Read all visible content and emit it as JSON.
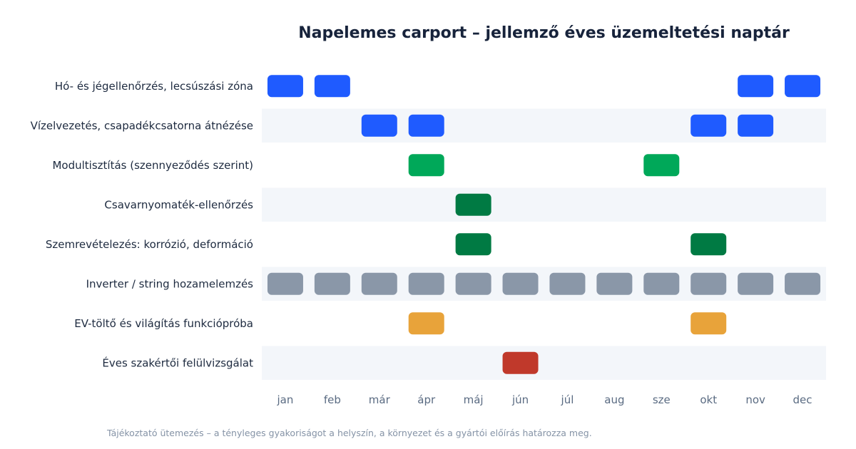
{
  "chart_data": {
    "type": "heatmap",
    "title": "Napelemes carport – jellemző éves üzemeltetési naptár",
    "months": [
      "jan",
      "feb",
      "már",
      "ápr",
      "máj",
      "jún",
      "júl",
      "aug",
      "sze",
      "okt",
      "nov",
      "dec"
    ],
    "rows": [
      {
        "label": "Hó- és jégellenőrzés, lecsúszási zóna",
        "color": "#1f5bff",
        "months": [
          1,
          2,
          11,
          12
        ]
      },
      {
        "label": "Vízelvezetés, csapadékcsatorna átnézése",
        "color": "#1f5bff",
        "months": [
          3,
          4,
          10,
          11
        ]
      },
      {
        "label": "Modultisztítás (szennyeződés szerint)",
        "color": "#00a859",
        "months": [
          4,
          9
        ]
      },
      {
        "label": "Csavarnyomaték-ellenőrzés",
        "color": "#007a43",
        "months": [
          5
        ]
      },
      {
        "label": "Szemrevételezés: korrózió, deformáció",
        "color": "#007a43",
        "months": [
          5,
          10
        ]
      },
      {
        "label": "Inverter / string hozamelemzés",
        "color": "#8a97a8",
        "months": [
          1,
          2,
          3,
          4,
          5,
          6,
          7,
          8,
          9,
          10,
          11,
          12
        ]
      },
      {
        "label": "EV-töltő és világítás funkciópróba",
        "color": "#e8a33a",
        "months": [
          4,
          10
        ]
      },
      {
        "label": "Éves szakértői felülvizsgálat",
        "color": "#c0392b",
        "months": [
          6
        ]
      }
    ],
    "row_band_color": "#f3f6fa",
    "grid": false,
    "legend": "none"
  },
  "footnote": "Tájékoztató ütemezés – a tényleges gyakoriságot a helyszín, a környezet és a gyártói előírás határozza meg."
}
